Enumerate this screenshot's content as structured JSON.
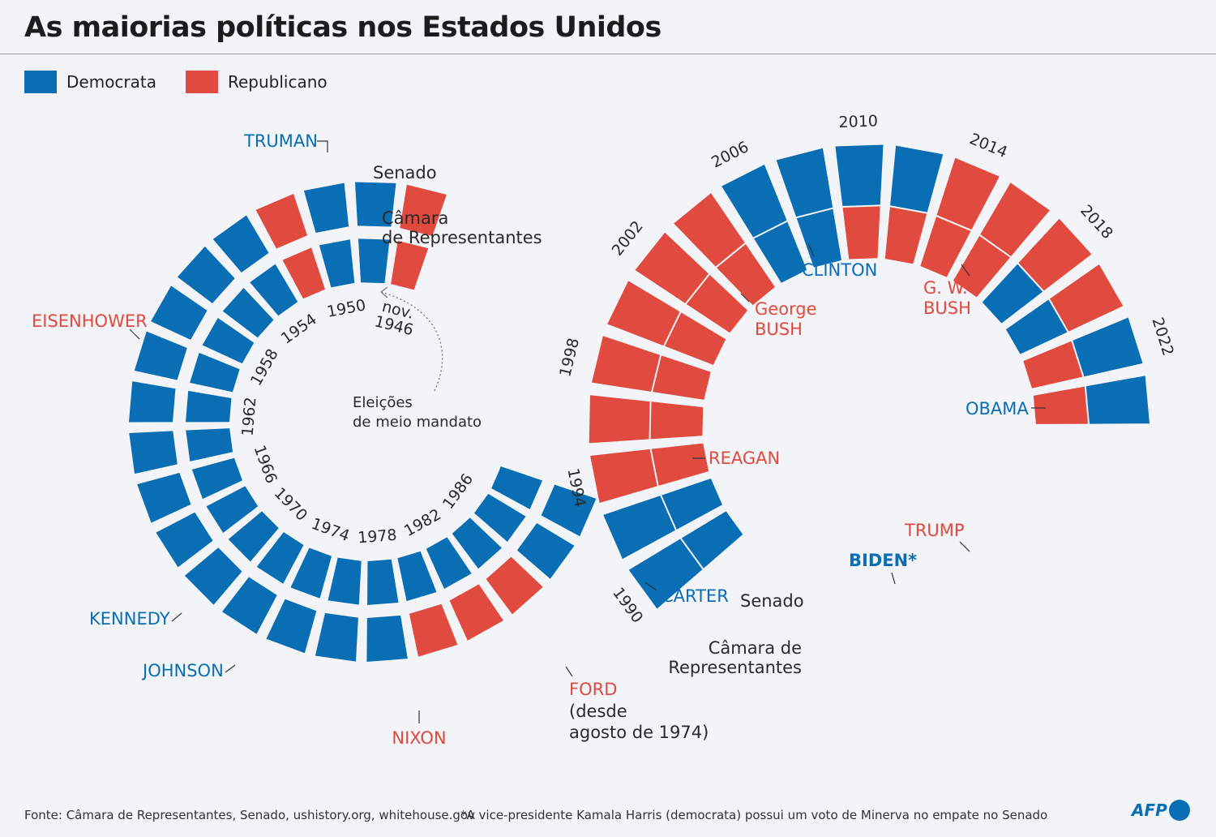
{
  "title": "As maiorias políticas nos Estados Unidos",
  "legend": {
    "democrat": {
      "label": "Democrata",
      "color": "#0a6eb4"
    },
    "republican": {
      "label": "Republicano",
      "color": "#e04a3f"
    }
  },
  "chart_data": {
    "type": "spiral-timeline",
    "start_year": 1946,
    "election_interval_years": 2,
    "chambers": {
      "senate": [
        "R",
        "D",
        "D",
        "R",
        "D",
        "D",
        "D",
        "D",
        "D",
        "D",
        "D",
        "D",
        "D",
        "D",
        "D",
        "D",
        "D",
        "R",
        "R",
        "R",
        "D",
        "D",
        "D",
        "D",
        "R",
        "R",
        "R",
        "R",
        "R",
        "R",
        "D",
        "D",
        "D",
        "D",
        "R",
        "R",
        "R",
        "R",
        "D",
        "D"
      ],
      "house": [
        "R",
        "D",
        "D",
        "R",
        "D",
        "D",
        "D",
        "D",
        "D",
        "D",
        "D",
        "D",
        "D",
        "D",
        "D",
        "D",
        "D",
        "D",
        "D",
        "D",
        "D",
        "D",
        "D",
        "D",
        "R",
        "R",
        "R",
        "R",
        "R",
        "R",
        "D",
        "D",
        "R",
        "R",
        "R",
        "R",
        "D",
        "D",
        "R",
        "R"
      ]
    },
    "year_labels": [
      "nov.\n1946",
      "1950",
      "1954",
      "1958",
      "1962",
      "1966",
      "1970",
      "1974",
      "1978",
      "1982",
      "1986",
      "1990",
      "1994",
      "1998",
      "2002",
      "2006",
      "2010",
      "2014",
      "2018",
      "2022"
    ],
    "chamber_labels": {
      "senate_start": "Senado",
      "house_start": "Câmara\nde Representantes",
      "senate_end": "Senado",
      "house_end": "Câmara de\nRepresentantes"
    },
    "presidents": [
      {
        "name": "TRUMAN",
        "party": "D"
      },
      {
        "name": "EISENHOWER",
        "party": "R"
      },
      {
        "name": "KENNEDY",
        "party": "D"
      },
      {
        "name": "JOHNSON",
        "party": "D"
      },
      {
        "name": "NIXON",
        "party": "R"
      },
      {
        "name": "FORD",
        "party": "R",
        "note": "(desde\nagosto de 1974)"
      },
      {
        "name": "CARTER",
        "party": "D"
      },
      {
        "name": "REAGAN",
        "party": "R"
      },
      {
        "name": "George\nBUSH",
        "party": "R"
      },
      {
        "name": "CLINTON",
        "party": "D"
      },
      {
        "name": "G. W.\nBUSH",
        "party": "R"
      },
      {
        "name": "OBAMA",
        "party": "D"
      },
      {
        "name": "TRUMP",
        "party": "R"
      },
      {
        "name": "BIDEN*",
        "party": "D"
      }
    ],
    "annotation": "Eleições\nde meio mandato"
  },
  "footer": {
    "source": "Fonte: Câmara de Representantes, Senado, ushistory.org, whitehouse.gov",
    "note": "*A vice-presidente Kamala Harris (democrata) possui um voto de Minerva no empate no Senado",
    "logo": "AFP"
  }
}
